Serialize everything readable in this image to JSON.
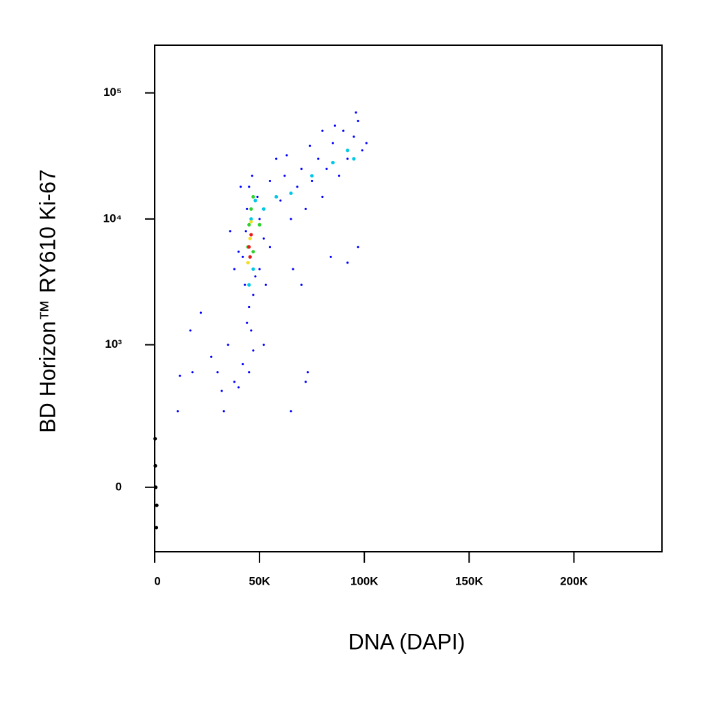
{
  "chart_data": {
    "type": "scatter",
    "x_label": "DNA (DAPI)",
    "y_label": "BD Horizon™ RY610  Ki-67",
    "xlim": [
      0,
      242000
    ],
    "xticks": [
      0,
      {
        "value": 50000,
        "label": "50K"
      },
      {
        "value": 100000,
        "label": "100K"
      },
      {
        "value": 150000,
        "label": "150K"
      },
      {
        "value": 200000,
        "label": "200K"
      }
    ],
    "ylim": [
      -219,
      239000
    ],
    "yscale": "biexponential",
    "yticks": [
      0,
      {
        "value": 1000,
        "label": "10³"
      },
      {
        "value": 10000,
        "label": "10⁴"
      },
      {
        "value": 100000,
        "label": "10⁵"
      }
    ],
    "grid": false,
    "series": [
      {
        "color": "#0000ff",
        "x": [
          44000,
          46000,
          45000,
          47000,
          43000,
          48000,
          42000,
          43500,
          44000,
          45000,
          46500,
          49000,
          50000,
          52000,
          55000,
          50000,
          53000,
          40000,
          38000,
          41000,
          36000,
          55000,
          60000,
          62000,
          65000,
          68000,
          70000,
          72000,
          75000,
          78000,
          80000,
          82000,
          85000,
          88000,
          90000,
          92000,
          95000,
          97000,
          99000,
          101000,
          96000,
          58000,
          63000,
          74000,
          80000,
          86000,
          11000,
          12000,
          17000,
          18000,
          22000,
          27000,
          30000,
          32000,
          33000,
          35000,
          38000,
          40000,
          42000,
          45000,
          47000,
          52000,
          65000,
          66000,
          70000,
          72000,
          73000,
          84000,
          92000,
          97000
        ],
        "values": [
          1500,
          1300,
          2000,
          2500,
          3000,
          3500,
          5000,
          8000,
          12000,
          18000,
          22000,
          15000,
          10000,
          7000,
          6000,
          4000,
          3000,
          5500,
          4000,
          18000,
          8000,
          20000,
          14000,
          22000,
          10000,
          18000,
          25000,
          12000,
          20000,
          30000,
          15000,
          25000,
          40000,
          22000,
          50000,
          30000,
          45000,
          60000,
          35000,
          40000,
          70000,
          30000,
          32000,
          38000,
          50000,
          55000,
          280,
          560,
          1300,
          600,
          1800,
          800,
          600,
          420,
          280,
          1000,
          500,
          450,
          700,
          600,
          900,
          1000,
          280,
          4000,
          3000,
          500,
          600,
          5000,
          4500,
          6000
        ]
      },
      {
        "color": "#00c8e6",
        "x": [
          46000,
          48000,
          52000,
          58000,
          65000,
          75000,
          85000,
          92000,
          95000,
          47000,
          45000
        ],
        "values": [
          10000,
          14000,
          12000,
          15000,
          16000,
          22000,
          28000,
          35000,
          30000,
          4000,
          3000
        ]
      },
      {
        "color": "#2ed12e",
        "x": [
          45000,
          46000,
          47000,
          44500,
          47000,
          50000
        ],
        "values": [
          9000,
          12000,
          15000,
          6000,
          5500,
          9000
        ]
      },
      {
        "color": "#f0e020",
        "x": [
          45500,
          46000,
          44500
        ],
        "values": [
          7000,
          9500,
          4500
        ]
      },
      {
        "color": "#e81c1c",
        "x": [
          45000,
          45500,
          46000
        ],
        "values": [
          6000,
          5000,
          7500
        ]
      },
      {
        "color": "#000000",
        "x": [
          500,
          1000,
          300,
          800,
          200
        ],
        "values": [
          0,
          -50,
          60,
          -120,
          150
        ]
      }
    ]
  }
}
